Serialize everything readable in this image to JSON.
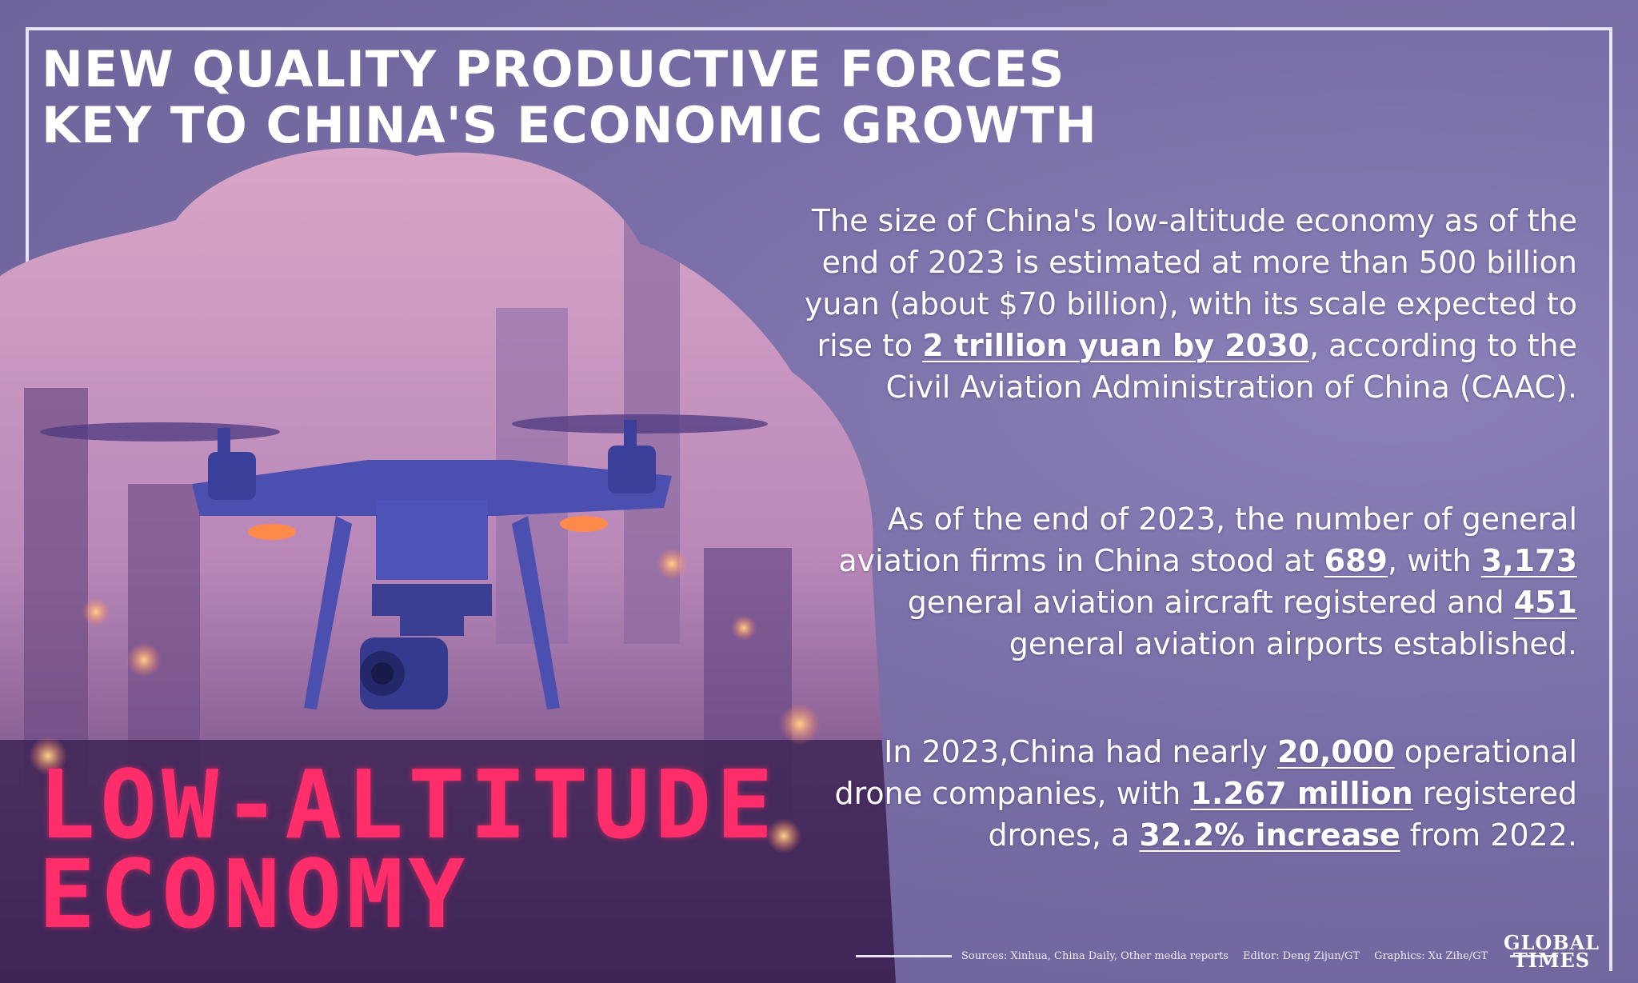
{
  "title": {
    "line1": "NEW QUALITY PRODUCTIVE FORCES",
    "line2": "KEY TO CHINA'S ECONOMIC GROWTH"
  },
  "feature": {
    "line1": "LOW-ALTITUDE",
    "line2": "ECONOMY",
    "image": "drone-over-city-skyline"
  },
  "paragraphs": {
    "p1": {
      "a": "The size of China's low-altitude economy as of the end of 2023 is estimated at more than 500 billion yuan (about $70 billion), with its scale expected to rise to ",
      "h1": "2 trillion yuan by 2030",
      "b": ", according to the Civil Aviation Administration of China (CAAC)."
    },
    "p2": {
      "a": "As of the end of 2023, the number of general aviation firms in China stood at ",
      "h1": "689",
      "b": ", with ",
      "h2": "3,173",
      "c": " general aviation aircraft registered and ",
      "h3": "451",
      "d": " general aviation airports established."
    },
    "p3": {
      "a": "In 2023,China had nearly ",
      "h1": "20,000",
      "b": " operational drone companies, with ",
      "h2": "1.267 million",
      "c": " registered drones, a ",
      "h3": "32.2% increase",
      "d": " from 2022."
    }
  },
  "footer": {
    "sources": "Sources: Xinhua, China Daily, Other media reports",
    "editor": "Editor: Deng Zijun/GT",
    "graphics": "Graphics: Xu Zihe/GT"
  },
  "logo": {
    "line1": "GLOBAL",
    "line2": "TIMES"
  },
  "colors": {
    "background": "#7a6fa8",
    "accent": "#ff2d6a",
    "text": "#ffffff"
  }
}
